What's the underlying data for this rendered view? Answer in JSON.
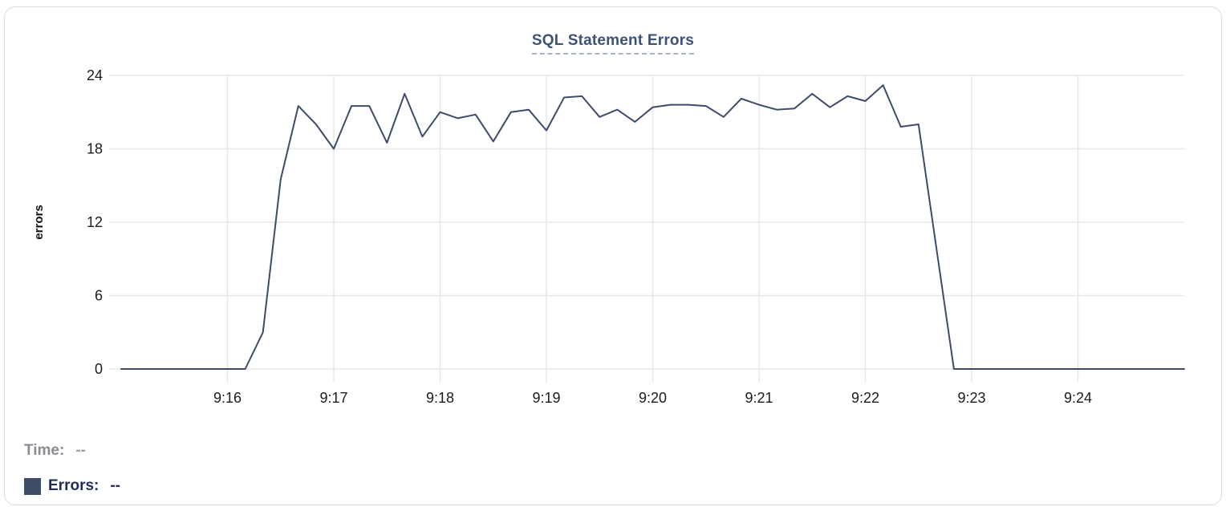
{
  "header": {
    "title": "SQL Statement Errors"
  },
  "legend": {
    "time_label": "Time:",
    "time_value": "--",
    "errors_label": "Errors:",
    "errors_value": "--",
    "swatch_color": "#3e4c68"
  },
  "colors": {
    "line": "#3d4c6a",
    "grid": "#e7e7e7",
    "tick_text": "#1c1c1e",
    "axis_title_text": "#111111",
    "title_text": "#3d5277",
    "card_border": "#d9d9d9"
  },
  "chart_data": {
    "type": "line",
    "title": "SQL Statement Errors",
    "xlabel": "",
    "ylabel": "errors",
    "ylim": [
      0,
      24
    ],
    "yticks": [
      0,
      6,
      12,
      18,
      24
    ],
    "grid": true,
    "legend_position": "bottom-left",
    "x_start_time": "9:15:00",
    "x_end_time": "9:25:00",
    "x_step_seconds": 10,
    "xlim_seconds": [
      0,
      600
    ],
    "xticks": [
      {
        "label": "9:16",
        "seconds": 60
      },
      {
        "label": "9:17",
        "seconds": 120
      },
      {
        "label": "9:18",
        "seconds": 180
      },
      {
        "label": "9:19",
        "seconds": 240
      },
      {
        "label": "9:20",
        "seconds": 300
      },
      {
        "label": "9:21",
        "seconds": 360
      },
      {
        "label": "9:22",
        "seconds": 420
      },
      {
        "label": "9:23",
        "seconds": 480
      },
      {
        "label": "9:24",
        "seconds": 540
      }
    ],
    "series": [
      {
        "name": "Errors",
        "color": "#3d4c6a",
        "values": [
          0,
          0,
          0,
          0,
          0,
          0,
          0,
          0,
          3,
          15.5,
          21.5,
          20,
          18,
          21.5,
          21.5,
          18.5,
          22.5,
          19,
          21,
          20.5,
          20.8,
          18.6,
          21,
          21.2,
          19.5,
          22.2,
          22.3,
          20.6,
          21.2,
          20.2,
          21.4,
          21.6,
          21.6,
          21.5,
          20.6,
          22.1,
          21.6,
          21.2,
          21.3,
          22.5,
          21.4,
          22.3,
          21.9,
          23.2,
          19.8,
          20,
          10,
          0,
          0,
          0,
          0,
          0,
          0,
          0,
          0,
          0,
          0,
          0,
          0,
          0,
          0
        ]
      }
    ]
  }
}
